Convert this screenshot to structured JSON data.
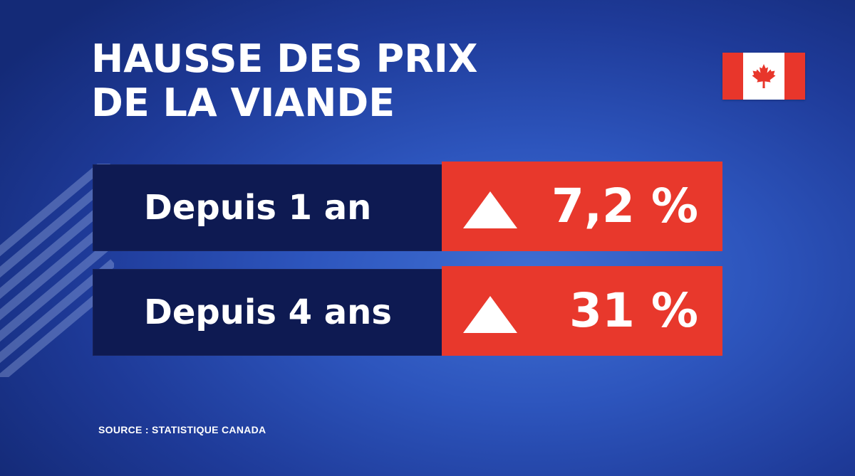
{
  "title": {
    "line1": "HAUSSE DES PRIX",
    "line2": "DE LA VIANDE"
  },
  "flag": {
    "icon": "canada-flag-icon",
    "colors": {
      "red": "#e8362b",
      "white": "#ffffff"
    }
  },
  "stats": [
    {
      "label": "Depuis 1 an",
      "value": "7,2 %",
      "trend_icon": "up-triangle-icon"
    },
    {
      "label": "Depuis 4 ans",
      "value": "31 %",
      "trend_icon": "up-triangle-icon"
    }
  ],
  "source": "SOURCE : STATISTIQUE CANADA",
  "colors": {
    "label_box": "#0e1a52",
    "value_box": "#e8382c",
    "background": "#2d55bd",
    "text": "#ffffff"
  }
}
